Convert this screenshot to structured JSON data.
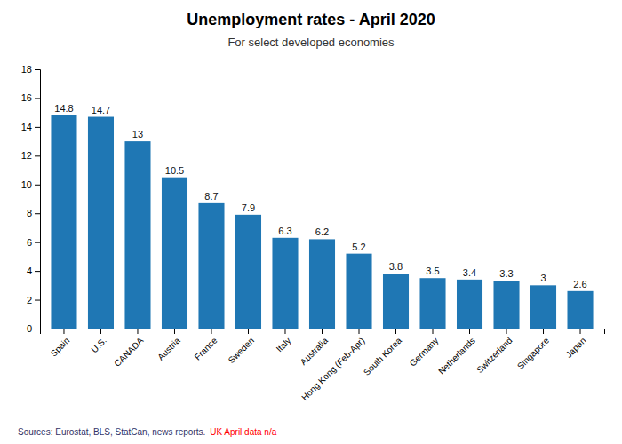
{
  "chart_data": {
    "type": "bar",
    "title": "Unemployment rates - April 2020",
    "subtitle": "For select developed economies",
    "categories": [
      "Spain",
      "U.S.",
      "CANADA",
      "Austria",
      "France",
      "Sweden",
      "Italy",
      "Australia",
      "Hong Kong (Feb-Apr)",
      "South Korea",
      "Germany",
      "Netherlands",
      "Switzerland",
      "Singapore",
      "Japan"
    ],
    "values": [
      14.8,
      14.7,
      13,
      10.5,
      8.7,
      7.9,
      6.3,
      6.2,
      5.2,
      3.8,
      3.5,
      3.4,
      3.3,
      3,
      2.6
    ],
    "data_labels": true,
    "ylim": [
      0,
      18
    ],
    "yticks": [
      0,
      2,
      4,
      6,
      8,
      10,
      12,
      14,
      16,
      18
    ],
    "grid": false,
    "annotations": [
      {
        "text": "Sources: Eurostat, BLS, StatCan, news reports.",
        "color": "#333366"
      },
      {
        "text": "UK April data n/a",
        "color": "red"
      }
    ]
  }
}
